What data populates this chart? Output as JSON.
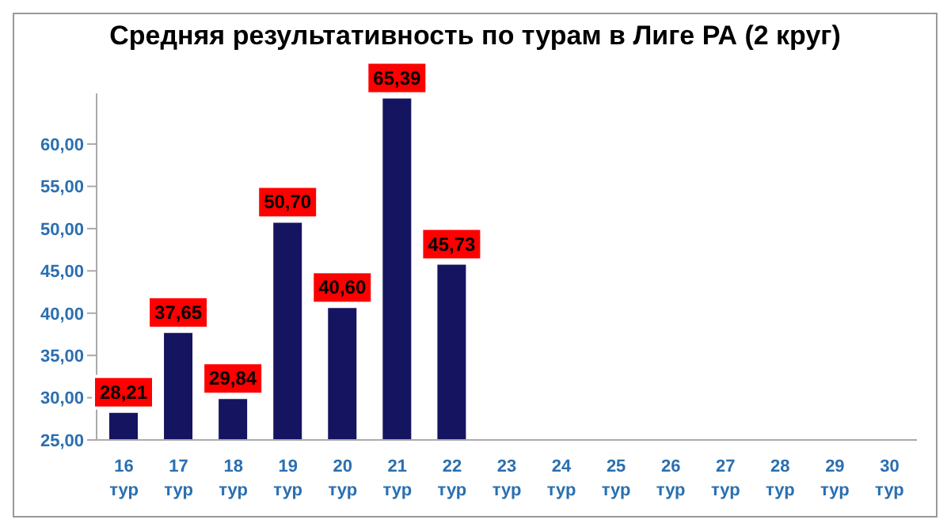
{
  "chart_data": {
    "type": "bar",
    "title": "Средняя результативность по турам в Лиге РА (2 круг)",
    "categories": [
      "16 тур",
      "17 тур",
      "18 тур",
      "19 тур",
      "20 тур",
      "21 тур",
      "22 тур",
      "23 тур",
      "24 тур",
      "25 тур",
      "26 тур",
      "27 тур",
      "28 тур",
      "29 тур",
      "30 тур"
    ],
    "values": [
      28.21,
      37.65,
      29.84,
      50.7,
      40.6,
      65.39,
      45.73,
      null,
      null,
      null,
      null,
      null,
      null,
      null,
      null
    ],
    "value_labels": [
      "28,21",
      "37,65",
      "29,84",
      "50,70",
      "40,60",
      "65,39",
      "45,73",
      null,
      null,
      null,
      null,
      null,
      null,
      null,
      null
    ],
    "color": "#141460",
    "ylim": [
      25,
      66
    ],
    "yticks": [
      {
        "value": 25,
        "label": "25,00"
      },
      {
        "value": 30,
        "label": "30,00"
      },
      {
        "value": 35,
        "label": "35,00"
      },
      {
        "value": 40,
        "label": "40,00"
      },
      {
        "value": 45,
        "label": "45,00"
      },
      {
        "value": 50,
        "label": "50,00"
      },
      {
        "value": 55,
        "label": "55,00"
      },
      {
        "value": 60,
        "label": "60,00"
      }
    ],
    "grid": false,
    "legend": false
  }
}
